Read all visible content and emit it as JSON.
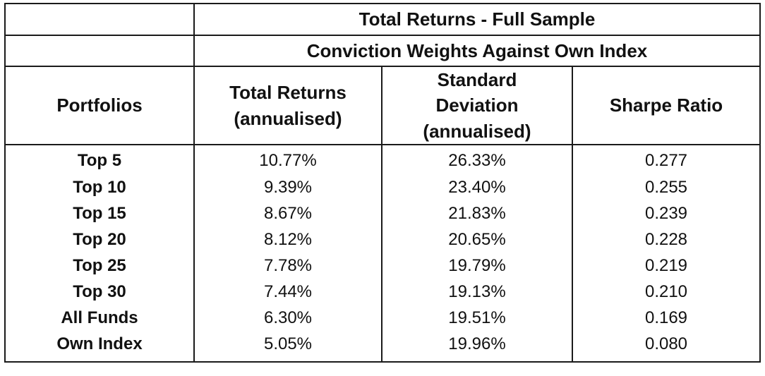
{
  "table": {
    "title": "Total Returns - Full Sample",
    "subtitle": "Conviction Weights Against Own Index",
    "headers": {
      "portfolios": "Portfolios",
      "total_returns": [
        "Total Returns",
        "(annualised)"
      ],
      "std_dev": [
        "Standard",
        "Deviation",
        "(annualised)"
      ],
      "sharpe": "Sharpe Ratio"
    },
    "rows": [
      {
        "portfolio": "Top 5",
        "total_returns": "10.77%",
        "std_dev": "26.33%",
        "sharpe": "0.277"
      },
      {
        "portfolio": "Top 10",
        "total_returns": "9.39%",
        "std_dev": "23.40%",
        "sharpe": "0.255"
      },
      {
        "portfolio": "Top 15",
        "total_returns": "8.67%",
        "std_dev": "21.83%",
        "sharpe": "0.239"
      },
      {
        "portfolio": "Top 20",
        "total_returns": "8.12%",
        "std_dev": "20.65%",
        "sharpe": "0.228"
      },
      {
        "portfolio": "Top 25",
        "total_returns": "7.78%",
        "std_dev": "19.79%",
        "sharpe": "0.219"
      },
      {
        "portfolio": "Top 30",
        "total_returns": "7.44%",
        "std_dev": "19.13%",
        "sharpe": "0.210"
      },
      {
        "portfolio": "All Funds",
        "total_returns": "6.30%",
        "std_dev": "19.51%",
        "sharpe": "0.169"
      },
      {
        "portfolio": "Own Index",
        "total_returns": "5.05%",
        "std_dev": "19.96%",
        "sharpe": "0.080"
      }
    ]
  }
}
